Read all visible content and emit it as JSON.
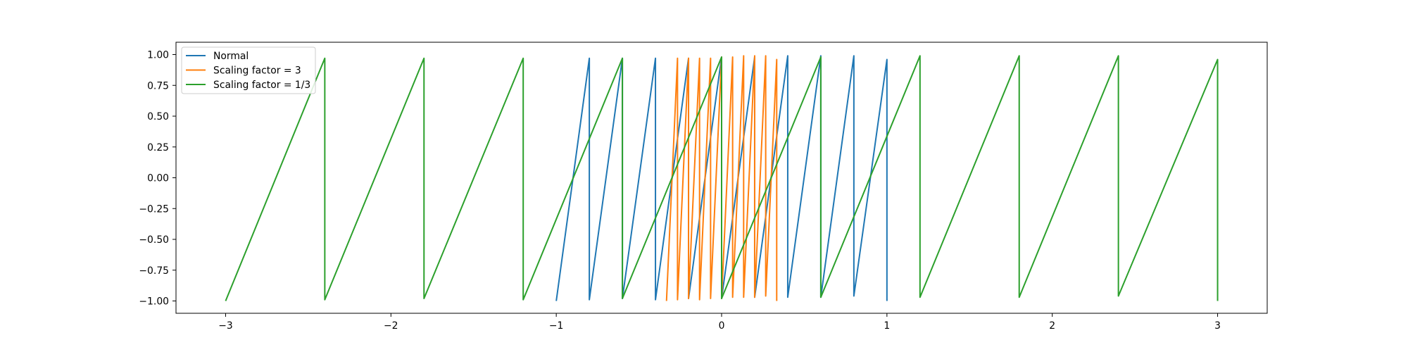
{
  "chart_data": {
    "type": "line",
    "title": "",
    "xlabel": "",
    "ylabel": "",
    "xlim": [
      -3.3,
      3.3
    ],
    "ylim": [
      -1.1,
      1.1
    ],
    "grid": false,
    "legend_position": "top-left",
    "x_ticks": [
      -3,
      -2,
      -1,
      0,
      1,
      2,
      3
    ],
    "x_tick_labels": [
      "−3",
      "−2",
      "−1",
      "0",
      "1",
      "2",
      "3"
    ],
    "y_ticks": [
      1.0,
      0.75,
      0.5,
      0.25,
      0.0,
      -0.25,
      -0.5,
      -0.75,
      -1.0
    ],
    "y_tick_labels": [
      "1.00",
      "0.75",
      "0.50",
      "0.25",
      "0.00",
      "−0.25",
      "−0.50",
      "−0.75",
      "−1.00"
    ],
    "series": [
      {
        "name": "Normal",
        "color": "#1f77b4",
        "x": [
          -1.0,
          -0.8,
          -0.8,
          -0.6,
          -0.6,
          -0.4,
          -0.4,
          -0.2,
          -0.2,
          0.0,
          0.0,
          0.2,
          0.2,
          0.4,
          0.4,
          0.6,
          0.6,
          0.8,
          0.8,
          1.0,
          1.0
        ],
        "y": [
          -1.0,
          0.97,
          -0.99,
          0.97,
          -0.98,
          0.97,
          -0.99,
          0.97,
          -0.98,
          0.98,
          -0.98,
          0.98,
          -0.97,
          0.99,
          -0.97,
          0.99,
          -0.97,
          0.99,
          -0.96,
          0.96,
          -1.0
        ]
      },
      {
        "name": "Scaling factor = 3",
        "color": "#ff7f0e",
        "x": [
          -0.3333,
          -0.2667,
          -0.2667,
          -0.2,
          -0.2,
          -0.1333,
          -0.1333,
          -0.0667,
          -0.0667,
          0.0,
          0.0,
          0.0667,
          0.0667,
          0.1333,
          0.1333,
          0.2,
          0.2,
          0.2667,
          0.2667,
          0.3333,
          0.3333
        ],
        "y": [
          -1.0,
          0.97,
          -0.99,
          0.97,
          -0.98,
          0.97,
          -0.99,
          0.97,
          -0.98,
          0.98,
          -0.98,
          0.98,
          -0.97,
          0.99,
          -0.97,
          0.99,
          -0.97,
          0.99,
          -0.96,
          0.96,
          -1.0
        ]
      },
      {
        "name": "Scaling factor = 1/3",
        "color": "#2ca02c",
        "x": [
          -3.0,
          -2.4,
          -2.4,
          -1.8,
          -1.8,
          -1.2,
          -1.2,
          -0.6,
          -0.6,
          0.0,
          0.0,
          0.6,
          0.6,
          1.2,
          1.2,
          1.8,
          1.8,
          2.4,
          2.4,
          3.0,
          3.0
        ],
        "y": [
          -1.0,
          0.97,
          -0.99,
          0.97,
          -0.98,
          0.97,
          -0.99,
          0.97,
          -0.98,
          0.98,
          -0.98,
          0.98,
          -0.97,
          0.99,
          -0.97,
          0.99,
          -0.97,
          0.99,
          -0.96,
          0.96,
          -1.0
        ]
      }
    ]
  }
}
